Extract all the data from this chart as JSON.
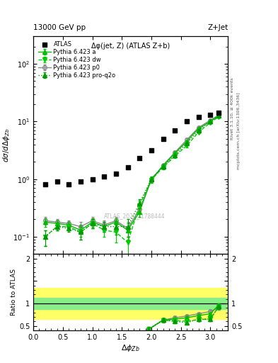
{
  "title_top": "13000 GeV pp",
  "title_right": "Z+Jet",
  "inner_title": "Δφ(jet, Z) (ATLAS Z+b)",
  "watermark": "ATLAS_2020_I1788444",
  "ylabel_main": "dσ/dΔφ_{Zb}",
  "ylabel_ratio": "Ratio to ATLAS",
  "xlabel": "Δφ_{Zb}",
  "right_label_top": "Rivet 3.1.10, ≥ 400k events",
  "right_label_bot": "mcplots.cern.ch [arXiv:1306.3436]",
  "atlas_x": [
    0.2,
    0.4,
    0.6,
    0.8,
    1.0,
    1.2,
    1.4,
    1.6,
    1.8,
    2.0,
    2.2,
    2.4,
    2.6,
    2.8,
    3.0,
    3.14
  ],
  "atlas_y": [
    0.82,
    0.92,
    0.82,
    0.92,
    1.0,
    1.1,
    1.25,
    1.6,
    2.3,
    3.2,
    5.0,
    7.0,
    10.0,
    12.0,
    13.0,
    14.0
  ],
  "py_a_x": [
    0.2,
    0.4,
    0.6,
    0.8,
    1.0,
    1.2,
    1.4,
    1.6,
    1.8,
    2.0,
    2.2,
    2.4,
    2.6,
    2.8,
    3.0,
    3.14
  ],
  "py_a_y": [
    0.18,
    0.17,
    0.16,
    0.13,
    0.18,
    0.15,
    0.18,
    0.13,
    0.27,
    1.0,
    1.7,
    2.8,
    4.5,
    7.5,
    10.0,
    12.5
  ],
  "py_a_yerr": [
    0.03,
    0.02,
    0.02,
    0.03,
    0.03,
    0.03,
    0.03,
    0.04,
    0.05,
    0.08,
    0.1,
    0.15,
    0.25,
    0.3,
    0.4,
    0.5
  ],
  "py_dw_x": [
    0.2,
    0.4,
    0.6,
    0.8,
    1.0,
    1.2,
    1.4,
    1.6,
    1.8,
    2.0,
    2.2,
    2.4,
    2.6,
    2.8,
    3.0,
    3.14
  ],
  "py_dw_y": [
    0.1,
    0.15,
    0.15,
    0.12,
    0.17,
    0.13,
    0.12,
    0.08,
    0.35,
    0.97,
    1.6,
    2.5,
    3.8,
    6.5,
    9.5,
    12.0
  ],
  "py_dw_yerr": [
    0.03,
    0.02,
    0.02,
    0.03,
    0.03,
    0.03,
    0.04,
    0.05,
    0.07,
    0.1,
    0.12,
    0.18,
    0.28,
    0.35,
    0.45,
    0.5
  ],
  "py_p0_x": [
    0.2,
    0.4,
    0.6,
    0.8,
    1.0,
    1.2,
    1.4,
    1.6,
    1.8,
    2.0,
    2.2,
    2.4,
    2.6,
    2.8,
    3.0,
    3.14
  ],
  "py_p0_y": [
    0.19,
    0.18,
    0.17,
    0.15,
    0.19,
    0.16,
    0.19,
    0.14,
    0.3,
    0.95,
    1.75,
    2.9,
    4.8,
    7.8,
    10.5,
    12.8
  ],
  "py_p0_yerr": [
    0.03,
    0.02,
    0.02,
    0.03,
    0.03,
    0.03,
    0.03,
    0.04,
    0.05,
    0.08,
    0.1,
    0.15,
    0.25,
    0.3,
    0.4,
    0.5
  ],
  "py_q2o_x": [
    0.2,
    0.4,
    0.6,
    0.8,
    1.0,
    1.2,
    1.4,
    1.6,
    1.8,
    2.0,
    2.2,
    2.4,
    2.6,
    2.8,
    3.0,
    3.14
  ],
  "py_q2o_y": [
    0.1,
    0.15,
    0.14,
    0.12,
    0.17,
    0.15,
    0.15,
    0.15,
    0.38,
    1.0,
    1.65,
    2.6,
    4.2,
    7.0,
    10.0,
    12.5
  ],
  "py_q2o_yerr": [
    0.03,
    0.02,
    0.02,
    0.03,
    0.03,
    0.03,
    0.04,
    0.05,
    0.07,
    0.1,
    0.12,
    0.18,
    0.28,
    0.35,
    0.45,
    0.5
  ],
  "ratio_py_a_x": [
    1.95,
    2.2,
    2.4,
    2.6,
    2.8,
    3.0,
    3.14
  ],
  "ratio_py_a_y": [
    0.42,
    0.63,
    0.65,
    0.68,
    0.73,
    0.77,
    0.96
  ],
  "ratio_py_a_yerr": [
    0.04,
    0.03,
    0.03,
    0.03,
    0.03,
    0.03,
    0.04
  ],
  "ratio_py_dw_x": [
    1.95,
    2.2,
    2.4,
    2.6,
    2.8,
    3.0,
    3.14
  ],
  "ratio_py_dw_y": [
    0.42,
    0.62,
    0.62,
    0.6,
    0.64,
    0.65,
    0.92
  ],
  "ratio_py_dw_yerr": [
    0.05,
    0.04,
    0.04,
    0.04,
    0.04,
    0.04,
    0.05
  ],
  "ratio_py_p0_x": [
    1.95,
    2.2,
    2.4,
    2.6,
    2.8,
    3.0,
    3.14
  ],
  "ratio_py_p0_y": [
    0.42,
    0.63,
    0.68,
    0.72,
    0.77,
    0.82,
    0.9
  ],
  "ratio_py_p0_yerr": [
    0.04,
    0.03,
    0.03,
    0.03,
    0.03,
    0.03,
    0.04
  ],
  "ratio_py_q2o_x": [
    1.95,
    2.2,
    2.4,
    2.6,
    2.8,
    3.0,
    3.14
  ],
  "ratio_py_q2o_y": [
    0.42,
    0.63,
    0.6,
    0.57,
    0.65,
    0.65,
    0.93
  ],
  "ratio_py_q2o_yerr": [
    0.05,
    0.04,
    0.04,
    0.04,
    0.04,
    0.04,
    0.05
  ],
  "band_yellow_lo": 0.65,
  "band_yellow_hi": 1.35,
  "band_green_lo": 0.88,
  "band_green_hi": 1.12,
  "color_a": "#00bb00",
  "color_dw": "#00cc00",
  "color_p0": "#888888",
  "color_q2o": "#009900",
  "ylim_main": [
    0.05,
    300
  ],
  "ylim_ratio": [
    0.4,
    2.1
  ],
  "xlim": [
    0.0,
    3.3
  ]
}
